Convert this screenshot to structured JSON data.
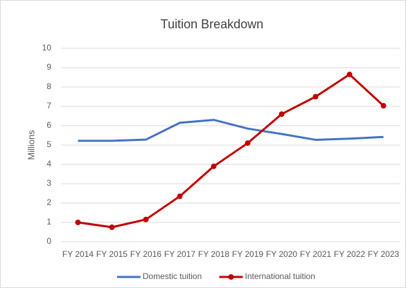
{
  "chart_data": {
    "type": "line",
    "title": "Tuition Breakdown",
    "y_label": "Millions",
    "categories": [
      "FY 2014",
      "FY 2015",
      "FY 2016",
      "FY 2017",
      "FY 2018",
      "FY 2019",
      "FY 2020",
      "FY 2021",
      "FY 2022",
      "FY 2023"
    ],
    "series": [
      {
        "name": "Domestic tuition",
        "color": "#4472c4",
        "markers": false,
        "values": [
          5.22,
          5.22,
          5.28,
          6.15,
          6.3,
          5.85,
          5.57,
          5.27,
          5.33,
          5.42
        ]
      },
      {
        "name": "International tuition",
        "color": "#c00000",
        "markers": true,
        "values": [
          1.0,
          0.75,
          1.15,
          2.35,
          3.9,
          5.1,
          6.6,
          7.5,
          8.65,
          7.03
        ]
      }
    ],
    "ylim": [
      0,
      10
    ],
    "yticks": [
      0,
      1,
      2,
      3,
      4,
      5,
      6,
      7,
      8,
      9,
      10
    ],
    "grid": true,
    "legend": "bottom"
  }
}
